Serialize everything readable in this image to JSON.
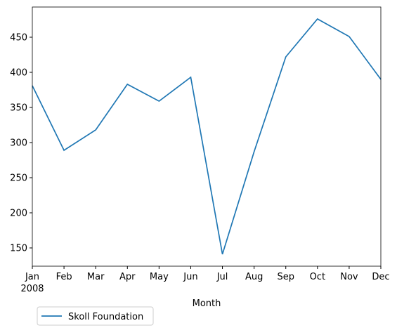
{
  "chart_data": {
    "type": "line",
    "categories": [
      "Jan",
      "Feb",
      "Mar",
      "Apr",
      "May",
      "Jun",
      "Jul",
      "Aug",
      "Sep",
      "Oct",
      "Nov",
      "Dec"
    ],
    "year_label": "2008",
    "xlabel": "Month",
    "series": [
      {
        "name": "Skoll Foundation",
        "color": "#1f77b4",
        "values": [
          381,
          289,
          318,
          383,
          359,
          393,
          141,
          287,
          422,
          476,
          451,
          390
        ]
      }
    ],
    "ylim": [
      124,
      493
    ],
    "yticks": [
      150,
      200,
      250,
      300,
      350,
      400,
      450
    ],
    "legend": "lower left outside"
  }
}
